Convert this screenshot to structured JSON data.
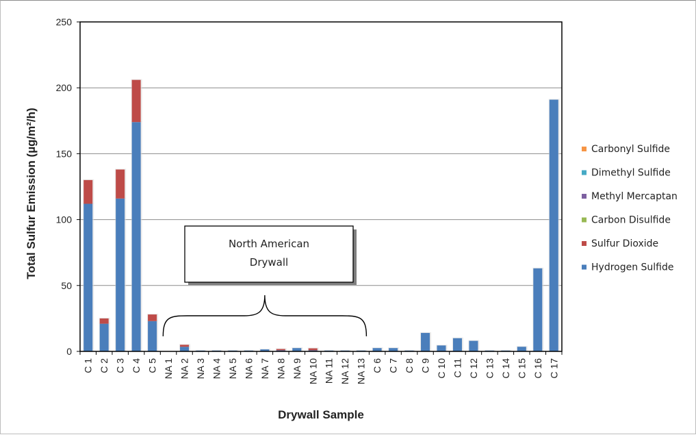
{
  "chart_data": {
    "type": "bar",
    "stacked": true,
    "title": "",
    "xlabel": "Drywall Sample",
    "ylabel": "Total Sulfur Emission (µg/m²/h)",
    "ylim": [
      0,
      250
    ],
    "yticks": [
      0,
      50,
      100,
      150,
      200,
      250
    ],
    "grid": true,
    "legend_position": "right",
    "categories": [
      "C 1",
      "C 2",
      "C 3",
      "C 4",
      "C 5",
      "NA 1",
      "NA 2",
      "NA 3",
      "NA 4",
      "NA 5",
      "NA 6",
      "NA 7",
      "NA 8",
      "NA 9",
      "NA 10",
      "NA 11",
      "NA 12",
      "NA 13",
      "C 6",
      "C 7",
      "C 8",
      "C 9",
      "C 10",
      "C 11",
      "C 12",
      "C 13",
      "C 14",
      "C 15",
      "C 16",
      "C 17"
    ],
    "series": [
      {
        "name": "Hydrogen Sulfide",
        "color": "#4a7ebb",
        "values": [
          112,
          21,
          116,
          174,
          23,
          0,
          3.5,
          0.3,
          0.2,
          0.3,
          0.2,
          1.5,
          0.8,
          2.5,
          0.8,
          0.5,
          0.3,
          0.3,
          2.5,
          2.5,
          0.3,
          14,
          4.5,
          10,
          8,
          0.3,
          0.3,
          3.5,
          63,
          191
        ]
      },
      {
        "name": "Sulfur Dioxide",
        "color": "#be4b48",
        "values": [
          18,
          4,
          22,
          32,
          5,
          0,
          1.5,
          0,
          0,
          0,
          0,
          0,
          1,
          0,
          1.5,
          0,
          0,
          0,
          0,
          0,
          0,
          0,
          0,
          0,
          0,
          0,
          0,
          0,
          0,
          0
        ]
      },
      {
        "name": "Carbon Disulfide",
        "color": "#98b954",
        "values": [
          0,
          0,
          0,
          0,
          0,
          0,
          0,
          0,
          0,
          0,
          0,
          0,
          0,
          0,
          0,
          0,
          0,
          0,
          0,
          0,
          0,
          0,
          0,
          0,
          0,
          0,
          0,
          0,
          0,
          0
        ]
      },
      {
        "name": "Methyl Mercaptan",
        "color": "#7d60a0",
        "values": [
          0,
          0,
          0,
          0,
          0,
          0,
          0,
          0,
          0,
          0,
          0,
          0,
          0,
          0,
          0,
          0,
          0,
          0,
          0,
          0,
          0,
          0,
          0,
          0,
          0,
          0,
          0,
          0,
          0,
          0
        ]
      },
      {
        "name": "Dimethyl Sulfide",
        "color": "#46aac5",
        "values": [
          0,
          0,
          0,
          0,
          0,
          0,
          0,
          0,
          0,
          0,
          0,
          0,
          0,
          0,
          0,
          0,
          0,
          0,
          0,
          0,
          0,
          0,
          0,
          0,
          0,
          0,
          0,
          0,
          0,
          0
        ]
      },
      {
        "name": "Carbonyl Sulfide",
        "color": "#f69545",
        "values": [
          0,
          0,
          0,
          0,
          0,
          0,
          0,
          0,
          0,
          0,
          0,
          0,
          0,
          0,
          0,
          0,
          0,
          0,
          0,
          0,
          0,
          0,
          0,
          0,
          0,
          0,
          0,
          0,
          0,
          0
        ]
      }
    ],
    "legend_order": [
      "Carbonyl Sulfide",
      "Dimethyl Sulfide",
      "Methyl Mercaptan",
      "Carbon Disulfide",
      "Sulfur Dioxide",
      "Hydrogen Sulfide"
    ],
    "annotations": [
      {
        "text_lines": [
          "North American",
          "Drywall"
        ],
        "spans_categories": [
          "NA 1",
          "NA 13"
        ],
        "style": "brace-callout"
      }
    ]
  }
}
